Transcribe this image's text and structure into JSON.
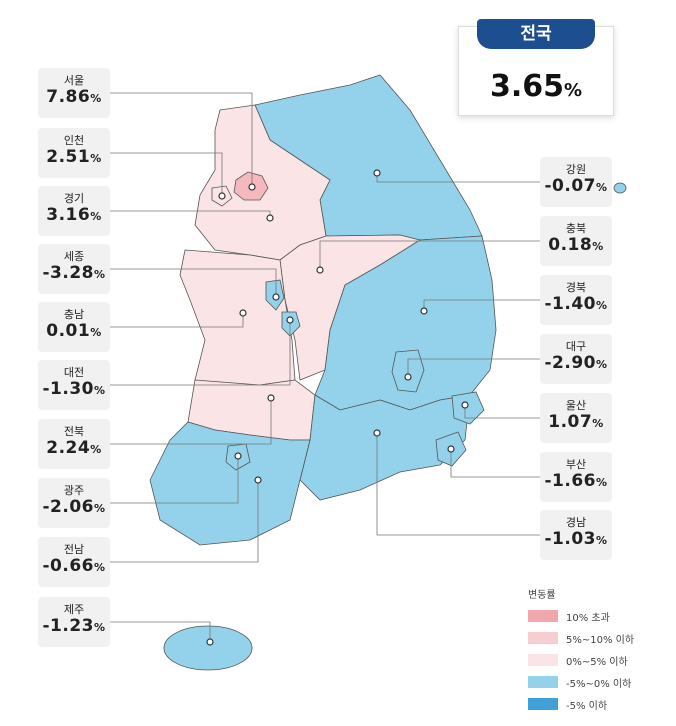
{
  "national": {
    "name": "전국",
    "value": "3.65"
  },
  "unit": "%",
  "regions": [
    {
      "name": "서울",
      "value": "7.86"
    },
    {
      "name": "인천",
      "value": "2.51"
    },
    {
      "name": "경기",
      "value": "3.16"
    },
    {
      "name": "세종",
      "value": "-3.28"
    },
    {
      "name": "충남",
      "value": "0.01"
    },
    {
      "name": "대전",
      "value": "-1.30"
    },
    {
      "name": "전북",
      "value": "2.24"
    },
    {
      "name": "광주",
      "value": "-2.06"
    },
    {
      "name": "전남",
      "value": "-0.66"
    },
    {
      "name": "제주",
      "value": "-1.23"
    },
    {
      "name": "강원",
      "value": "-0.07"
    },
    {
      "name": "충북",
      "value": "0.18"
    },
    {
      "name": "경북",
      "value": "-1.40"
    },
    {
      "name": "대구",
      "value": "-2.90"
    },
    {
      "name": "울산",
      "value": "1.07"
    },
    {
      "name": "부산",
      "value": "-1.66"
    },
    {
      "name": "경남",
      "value": "-1.03"
    }
  ],
  "legend": {
    "title": "변동률",
    "items": [
      "10% 초과",
      "5%~10% 이하",
      "0%~5% 이하",
      "-5%~0% 이하",
      "-5% 이하"
    ]
  }
}
